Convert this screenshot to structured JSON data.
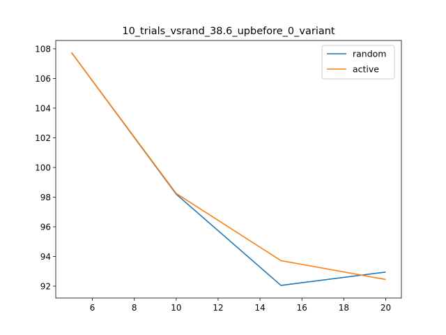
{
  "chart_data": {
    "type": "line",
    "title": "10_trials_vsrand_38.6_upbefore_0_variant",
    "xlabel": "",
    "ylabel": "",
    "x": [
      5,
      10,
      15,
      20
    ],
    "series": [
      {
        "name": "random",
        "color": "#1f77b4",
        "values": [
          107.75,
          98.2,
          92.05,
          92.95
        ]
      },
      {
        "name": "active",
        "color": "#ff7f0e",
        "values": [
          107.75,
          98.25,
          93.72,
          92.45
        ]
      }
    ],
    "xlim": [
      4.25,
      20.75
    ],
    "ylim": [
      91.2,
      108.56
    ],
    "xticks": [
      6,
      8,
      10,
      12,
      14,
      16,
      18,
      20
    ],
    "yticks": [
      92,
      94,
      96,
      98,
      100,
      102,
      104,
      106,
      108
    ],
    "grid": false,
    "legend_position": "upper-right"
  }
}
